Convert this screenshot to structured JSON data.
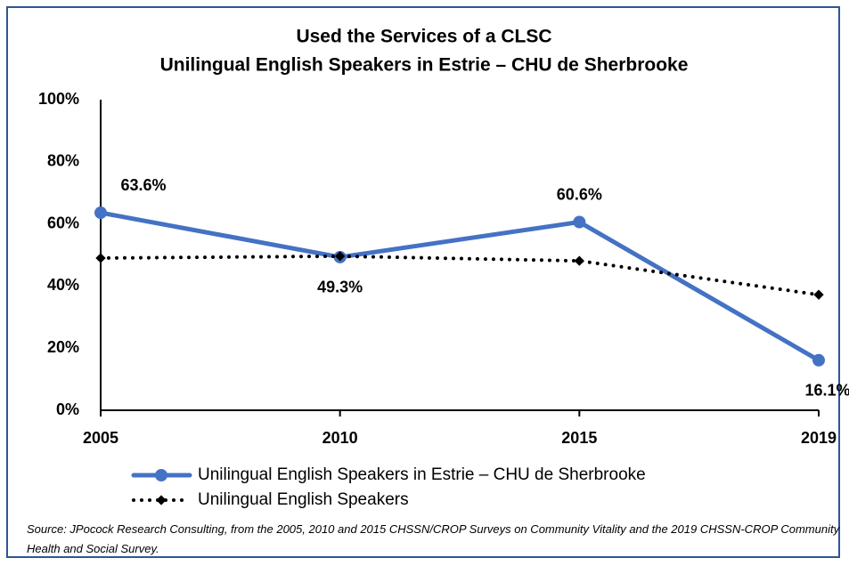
{
  "chart_data": {
    "type": "line",
    "title": [
      "Used the Services of a CLSC",
      "Unilingual English Speakers in Estrie – CHU de Sherbrooke"
    ],
    "categories": [
      "2005",
      "2010",
      "2015",
      "2019"
    ],
    "series": [
      {
        "name": "Unilingual English Speakers in Estrie – CHU de Sherbrooke",
        "color": "#4472c4",
        "values": [
          63.6,
          49.3,
          60.6,
          16.1
        ],
        "value_labels": [
          "63.6%",
          "49.3%",
          "60.6%",
          "16.1%"
        ]
      },
      {
        "name": "Unilingual English Speakers",
        "color": "#000000",
        "values": [
          49.0,
          49.6,
          48.1,
          37.2
        ]
      }
    ],
    "ylim": [
      0,
      100
    ],
    "yticks": [
      {
        "value": 0,
        "label": "0%"
      },
      {
        "value": 20,
        "label": "20%"
      },
      {
        "value": 40,
        "label": "40%"
      },
      {
        "value": 60,
        "label": "60%"
      },
      {
        "value": 80,
        "label": "80%"
      },
      {
        "value": 100,
        "label": "100%"
      }
    ],
    "grid": false,
    "source": "Source: JPocock Research Consulting, from the 2005, 2010 and 2015 CHSSN/CROP Surveys on Community Vitality and the 2019 CHSSN-CROP Community Health and Social Survey."
  }
}
